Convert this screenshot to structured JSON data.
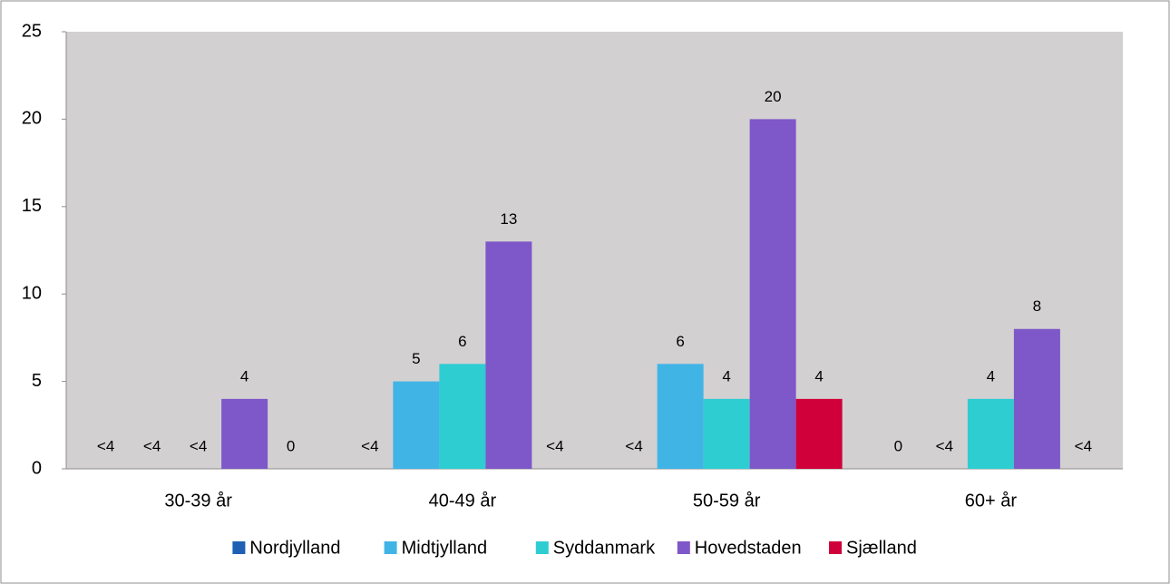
{
  "chart_data": {
    "type": "bar",
    "categories": [
      "30-39 år",
      "40-49 år",
      "50-59 år",
      "60+ år"
    ],
    "series": [
      {
        "name": "Nordjylland",
        "color": "#1f5fb4",
        "values": [
          null,
          null,
          null,
          0
        ],
        "value_labels": [
          "<4",
          "<4",
          "<4",
          "0"
        ]
      },
      {
        "name": "Midtjylland",
        "color": "#41b4e6",
        "values": [
          null,
          5,
          6,
          null
        ],
        "value_labels": [
          "<4",
          "5",
          "6",
          "<4"
        ]
      },
      {
        "name": "Syddanmark",
        "color": "#2ecdd2",
        "values": [
          null,
          6,
          4,
          4
        ],
        "value_labels": [
          "<4",
          "6",
          "4",
          "4"
        ]
      },
      {
        "name": "Hovedstaden",
        "color": "#7e57c8",
        "values": [
          4,
          13,
          20,
          8
        ],
        "value_labels": [
          "4",
          "13",
          "20",
          "8"
        ]
      },
      {
        "name": "Sjælland",
        "color": "#d0003a",
        "values": [
          0,
          null,
          4,
          null
        ],
        "value_labels": [
          "0",
          "<4",
          "4",
          "<4"
        ]
      }
    ],
    "ylim": [
      0,
      25
    ],
    "yticks": [
      0,
      5,
      10,
      15,
      20,
      25
    ],
    "legend": "bottom"
  }
}
